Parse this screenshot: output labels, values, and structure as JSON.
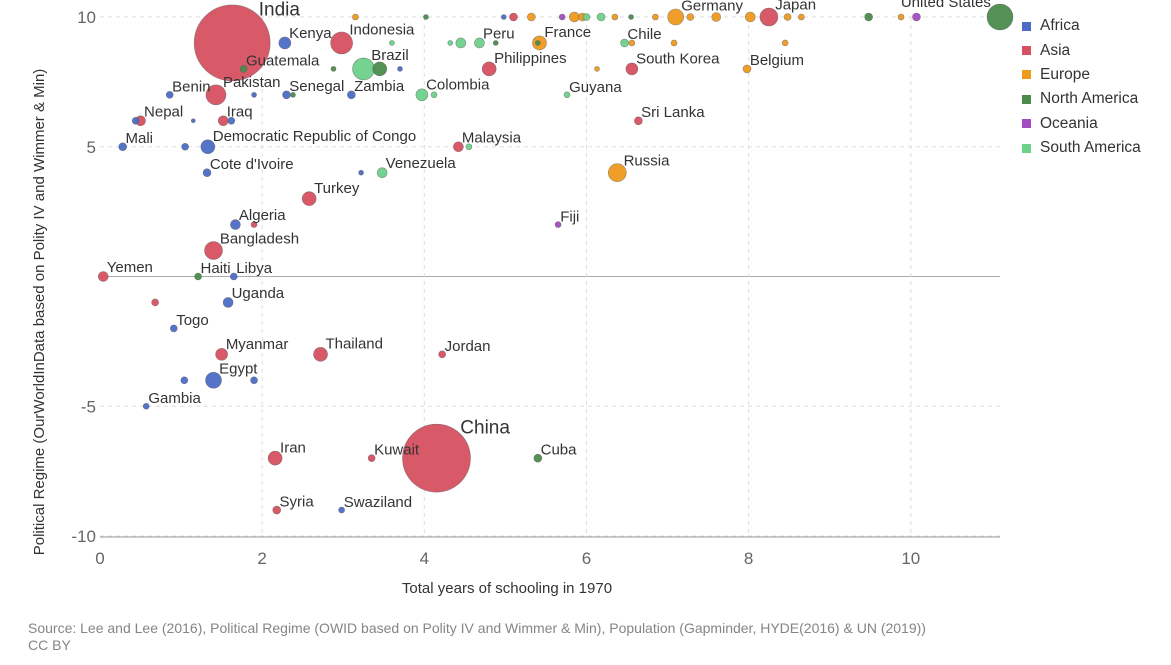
{
  "chart_data": {
    "type": "scatter",
    "title": "",
    "xlabel": "Total years of schooling in 1970",
    "ylabel": "Political Regime (OurWorldInData based on Polity IV and Wimmer & Min)",
    "xlim": [
      0,
      11.1
    ],
    "ylim": [
      -10,
      10
    ],
    "x_ticks": [
      "0",
      "2",
      "4",
      "6",
      "8",
      "10"
    ],
    "y_ticks": [
      "10",
      "5",
      "-5",
      "-10"
    ],
    "legend": [
      {
        "name": "Africa",
        "color": "#4C6CC5"
      },
      {
        "name": "Asia",
        "color": "#D65161"
      },
      {
        "name": "Europe",
        "color": "#EE9A1D"
      },
      {
        "name": "North America",
        "color": "#4B8B4C"
      },
      {
        "name": "Oceania",
        "color": "#A14DBF"
      },
      {
        "name": "South America",
        "color": "#6DD18A"
      }
    ],
    "points": [
      {
        "label": "India",
        "x": 1.63,
        "y": 9.0,
        "region": "Asia",
        "size": 38,
        "big": true
      },
      {
        "label": "China",
        "x": 4.15,
        "y": -7.0,
        "region": "Asia",
        "size": 34,
        "big": true
      },
      {
        "label": "United States",
        "x": 11.1,
        "y": 10.0,
        "region": "North America",
        "size": 13
      },
      {
        "label": "Kenya",
        "x": 2.28,
        "y": 9.0,
        "region": "Africa",
        "size": 6
      },
      {
        "label": "Indonesia",
        "x": 2.98,
        "y": 9.0,
        "region": "Asia",
        "size": 11
      },
      {
        "label": "Peru",
        "x": 4.68,
        "y": 9.0,
        "region": "South America",
        "size": 5
      },
      {
        "label": "France",
        "x": 5.42,
        "y": 9.0,
        "region": "Europe",
        "size": 7
      },
      {
        "label": "Chile",
        "x": 6.47,
        "y": 9.0,
        "region": "South America",
        "size": 4
      },
      {
        "label": "Germany",
        "x": 7.1,
        "y": 10.0,
        "region": "Europe",
        "size": 8
      },
      {
        "label": "Japan",
        "x": 8.25,
        "y": 10.0,
        "region": "Asia",
        "size": 9
      },
      {
        "label": "Guatemala",
        "x": 1.77,
        "y": 8.0,
        "region": "North America",
        "size": 3.5
      },
      {
        "label": "Brazil",
        "x": 3.25,
        "y": 8.0,
        "region": "South America",
        "size": 11
      },
      {
        "label": "Philippines",
        "x": 4.8,
        "y": 8.0,
        "region": "Asia",
        "size": 7
      },
      {
        "label": "South Korea",
        "x": 6.56,
        "y": 8.0,
        "region": "Asia",
        "size": 6
      },
      {
        "label": "Belgium",
        "x": 7.98,
        "y": 8.0,
        "region": "Europe",
        "size": 4
      },
      {
        "label": "Benin",
        "x": 0.86,
        "y": 7.0,
        "region": "Africa",
        "size": 3.5
      },
      {
        "label": "Pakistan",
        "x": 1.43,
        "y": 7.0,
        "region": "Asia",
        "size": 10
      },
      {
        "label": "Senegal",
        "x": 2.3,
        "y": 7.0,
        "region": "Africa",
        "size": 4
      },
      {
        "label": "Zambia",
        "x": 3.1,
        "y": 7.0,
        "region": "Africa",
        "size": 4
      },
      {
        "label": "Colombia",
        "x": 3.97,
        "y": 7.0,
        "region": "South America",
        "size": 6
      },
      {
        "label": "Guyana",
        "x": 5.76,
        "y": 7.0,
        "region": "South America",
        "size": 3
      },
      {
        "label": "Nepal",
        "x": 0.5,
        "y": 6.0,
        "region": "Asia",
        "size": 5
      },
      {
        "label": "Iraq",
        "x": 1.52,
        "y": 6.0,
        "region": "Asia",
        "size": 5
      },
      {
        "label": "Sri Lanka",
        "x": 6.64,
        "y": 6.0,
        "region": "Asia",
        "size": 4
      },
      {
        "label": "Mali",
        "x": 0.28,
        "y": 5.0,
        "region": "Africa",
        "size": 4
      },
      {
        "label": "Democratic Republic of Congo",
        "x": 1.33,
        "y": 5.0,
        "region": "Africa",
        "size": 7
      },
      {
        "label": "Malaysia",
        "x": 4.42,
        "y": 5.0,
        "region": "Asia",
        "size": 5
      },
      {
        "label": "Cote d'Ivoire",
        "x": 1.32,
        "y": 4.0,
        "region": "Africa",
        "size": 4
      },
      {
        "label": "Venezuela",
        "x": 3.48,
        "y": 4.0,
        "region": "South America",
        "size": 5
      },
      {
        "label": "Russia",
        "x": 6.38,
        "y": 4.0,
        "region": "Europe",
        "size": 9
      },
      {
        "label": "Turkey",
        "x": 2.58,
        "y": 3.0,
        "region": "Asia",
        "size": 7
      },
      {
        "label": "Fiji",
        "x": 5.65,
        "y": 2.0,
        "region": "Oceania",
        "size": 3
      },
      {
        "label": "Algeria",
        "x": 1.67,
        "y": 2.0,
        "region": "Africa",
        "size": 5
      },
      {
        "label": "Bangladesh",
        "x": 1.4,
        "y": 1.0,
        "region": "Asia",
        "size": 9
      },
      {
        "label": "Yemen",
        "x": 0.04,
        "y": 0.0,
        "region": "Asia",
        "size": 5
      },
      {
        "label": "Haiti",
        "x": 1.21,
        "y": 0.0,
        "region": "North America",
        "size": 3.5
      },
      {
        "label": "Libya",
        "x": 1.65,
        "y": 0.0,
        "region": "Africa",
        "size": 3.5
      },
      {
        "label": "Uganda",
        "x": 1.58,
        "y": -1.0,
        "region": "Africa",
        "size": 5
      },
      {
        "label": "Togo",
        "x": 0.91,
        "y": -2.0,
        "region": "Africa",
        "size": 3.5
      },
      {
        "label": "Myanmar",
        "x": 1.5,
        "y": -3.0,
        "region": "Asia",
        "size": 6
      },
      {
        "label": "Thailand",
        "x": 2.72,
        "y": -3.0,
        "region": "Asia",
        "size": 7
      },
      {
        "label": "Jordan",
        "x": 4.22,
        "y": -3.0,
        "region": "Asia",
        "size": 3.5
      },
      {
        "label": "Egypt",
        "x": 1.4,
        "y": -4.0,
        "region": "Africa",
        "size": 8
      },
      {
        "label": "Gambia",
        "x": 0.57,
        "y": -5.0,
        "region": "Africa",
        "size": 3
      },
      {
        "label": "Iran",
        "x": 2.16,
        "y": -7.0,
        "region": "Asia",
        "size": 7
      },
      {
        "label": "Kuwait",
        "x": 3.35,
        "y": -7.0,
        "region": "Asia",
        "size": 3.5
      },
      {
        "label": "Cuba",
        "x": 5.4,
        "y": -7.0,
        "region": "North America",
        "size": 4
      },
      {
        "label": "Syria",
        "x": 2.18,
        "y": -9.0,
        "region": "Asia",
        "size": 4
      },
      {
        "label": "Swaziland",
        "x": 2.98,
        "y": -9.0,
        "region": "Africa",
        "size": 3
      }
    ],
    "unlabeled_points": [
      {
        "x": 3.15,
        "y": 10.0,
        "region": "Europe",
        "size": 3
      },
      {
        "x": 4.02,
        "y": 10.0,
        "region": "North America",
        "size": 2.5
      },
      {
        "x": 4.98,
        "y": 10.0,
        "region": "Africa",
        "size": 2.5
      },
      {
        "x": 5.1,
        "y": 10.0,
        "region": "Asia",
        "size": 4
      },
      {
        "x": 5.32,
        "y": 10.0,
        "region": "Europe",
        "size": 4
      },
      {
        "x": 5.7,
        "y": 10.0,
        "region": "Oceania",
        "size": 3
      },
      {
        "x": 5.85,
        "y": 10.0,
        "region": "Europe",
        "size": 5
      },
      {
        "x": 5.95,
        "y": 10.0,
        "region": "Europe",
        "size": 4
      },
      {
        "x": 6.0,
        "y": 10.0,
        "region": "South America",
        "size": 3.5
      },
      {
        "x": 6.18,
        "y": 10.0,
        "region": "South America",
        "size": 4
      },
      {
        "x": 6.35,
        "y": 10.0,
        "region": "Europe",
        "size": 3
      },
      {
        "x": 6.55,
        "y": 10.0,
        "region": "North America",
        "size": 2.5
      },
      {
        "x": 6.85,
        "y": 10.0,
        "region": "Europe",
        "size": 3
      },
      {
        "x": 7.28,
        "y": 10.0,
        "region": "Europe",
        "size": 3.5
      },
      {
        "x": 7.6,
        "y": 10.0,
        "region": "Europe",
        "size": 4.5
      },
      {
        "x": 8.02,
        "y": 10.0,
        "region": "Europe",
        "size": 5
      },
      {
        "x": 8.48,
        "y": 10.0,
        "region": "Europe",
        "size": 3.5
      },
      {
        "x": 8.65,
        "y": 10.0,
        "region": "Europe",
        "size": 3
      },
      {
        "x": 9.48,
        "y": 10.0,
        "region": "North America",
        "size": 4
      },
      {
        "x": 9.88,
        "y": 10.0,
        "region": "Europe",
        "size": 3
      },
      {
        "x": 10.07,
        "y": 10.0,
        "region": "Oceania",
        "size": 4
      },
      {
        "x": 3.6,
        "y": 9.0,
        "region": "South America",
        "size": 2.5
      },
      {
        "x": 4.32,
        "y": 9.0,
        "region": "South America",
        "size": 2.5
      },
      {
        "x": 4.45,
        "y": 9.0,
        "region": "South America",
        "size": 5
      },
      {
        "x": 4.88,
        "y": 9.0,
        "region": "North America",
        "size": 2.5
      },
      {
        "x": 5.4,
        "y": 9.0,
        "region": "North America",
        "size": 2.5
      },
      {
        "x": 6.56,
        "y": 9.0,
        "region": "Europe",
        "size": 3
      },
      {
        "x": 7.08,
        "y": 9.0,
        "region": "Europe",
        "size": 3
      },
      {
        "x": 8.45,
        "y": 9.0,
        "region": "Europe",
        "size": 3
      },
      {
        "x": 2.88,
        "y": 8.0,
        "region": "North America",
        "size": 2.5
      },
      {
        "x": 3.45,
        "y": 8.0,
        "region": "North America",
        "size": 7
      },
      {
        "x": 3.7,
        "y": 8.0,
        "region": "Africa",
        "size": 2.5
      },
      {
        "x": 6.13,
        "y": 8.0,
        "region": "Europe",
        "size": 2.5
      },
      {
        "x": 1.9,
        "y": 7.0,
        "region": "Africa",
        "size": 2.5
      },
      {
        "x": 2.38,
        "y": 7.0,
        "region": "North America",
        "size": 2.5
      },
      {
        "x": 4.12,
        "y": 7.0,
        "region": "South America",
        "size": 3
      },
      {
        "x": 0.44,
        "y": 6.0,
        "region": "Africa",
        "size": 3.5
      },
      {
        "x": 1.15,
        "y": 6.0,
        "region": "Africa",
        "size": 2
      },
      {
        "x": 1.62,
        "y": 6.0,
        "region": "Africa",
        "size": 3.5
      },
      {
        "x": 1.05,
        "y": 5.0,
        "region": "Africa",
        "size": 3.5
      },
      {
        "x": 4.55,
        "y": 5.0,
        "region": "South America",
        "size": 3
      },
      {
        "x": 3.22,
        "y": 4.0,
        "region": "Africa",
        "size": 2.5
      },
      {
        "x": 1.9,
        "y": 2.0,
        "region": "Asia",
        "size": 3
      },
      {
        "x": 0.68,
        "y": -1.0,
        "region": "Asia",
        "size": 3.5
      },
      {
        "x": 1.04,
        "y": -4.0,
        "region": "Africa",
        "size": 3.5
      },
      {
        "x": 1.9,
        "y": -4.0,
        "region": "Africa",
        "size": 3.5
      }
    ]
  },
  "source_text": "Source: Lee and Lee (2016), Political Regime (OWID based on Polity IV and Wimmer & Min), Population (Gapminder, HYDE(2016) & UN (2019))",
  "license_text": "CC BY"
}
